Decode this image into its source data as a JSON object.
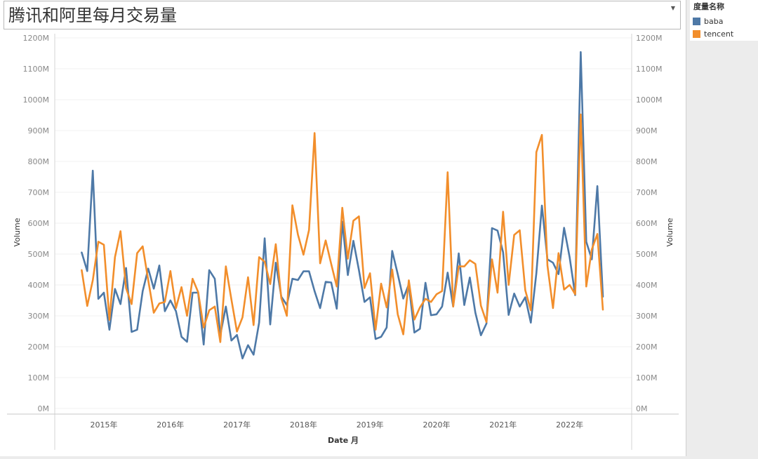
{
  "dashboard": {
    "title": "腾讯和阿里每月交易量",
    "dropdown_icon": "chevron-down-icon"
  },
  "legend": {
    "title": "度量名称",
    "items": [
      {
        "label": "baba",
        "color": "#4e79a7"
      },
      {
        "label": "tencent",
        "color": "#f28e2b"
      }
    ]
  },
  "chart_data": {
    "type": "line",
    "title": "",
    "xlabel": "Date 月",
    "ylabel": "Volume",
    "y2label": "Volume",
    "ylim": [
      0,
      1200
    ],
    "yticks": [
      0,
      100,
      200,
      300,
      400,
      500,
      600,
      700,
      800,
      900,
      1000,
      1100,
      1200
    ],
    "ytick_labels": [
      "0M",
      "100M",
      "200M",
      "300M",
      "400M",
      "500M",
      "600M",
      "700M",
      "800M",
      "900M",
      "1000M",
      "1100M",
      "1200M"
    ],
    "xtick_labels": [
      "2015年",
      "2016年",
      "2017年",
      "2018年",
      "2019年",
      "2020年",
      "2021年",
      "2022年"
    ],
    "x_range_months": [
      -1,
      96
    ],
    "grid": "horizontal",
    "series": [
      {
        "name": "baba",
        "color": "#4e79a7",
        "x_start": "2014-09",
        "values": [
          505,
          445,
          770,
          355,
          375,
          255,
          387,
          338,
          455,
          248,
          255,
          380,
          453,
          388,
          463,
          315,
          350,
          315,
          232,
          216,
          375,
          375,
          207,
          448,
          420,
          238,
          330,
          220,
          238,
          162,
          205,
          174,
          278,
          551,
          272,
          472,
          362,
          335,
          420,
          416,
          444,
          444,
          380,
          325,
          410,
          408,
          323,
          605,
          432,
          543,
          448,
          345,
          360,
          225,
          232,
          262,
          510,
          435,
          356,
          402,
          246,
          258,
          407,
          302,
          305,
          330,
          440,
          330,
          502,
          335,
          424,
          310,
          237,
          275,
          584,
          576,
          506,
          303,
          372,
          330,
          360,
          278,
          438,
          657,
          483,
          472,
          435,
          585,
          490,
          367,
          1154,
          540,
          483,
          720,
          362
        ]
      },
      {
        "name": "tencent",
        "color": "#f28e2b",
        "x_start": "2014-09",
        "values": [
          448,
          332,
          415,
          540,
          530,
          287,
          490,
          574,
          390,
          338,
          503,
          525,
          415,
          310,
          340,
          345,
          445,
          325,
          393,
          300,
          420,
          377,
          262,
          318,
          330,
          215,
          460,
          353,
          249,
          295,
          425,
          270,
          490,
          475,
          403,
          532,
          357,
          300,
          658,
          563,
          498,
          578,
          892,
          470,
          544,
          468,
          395,
          650,
          485,
          608,
          622,
          390,
          438,
          255,
          404,
          327,
          450,
          305,
          240,
          415,
          288,
          327,
          355,
          345,
          370,
          380,
          765,
          330,
          460,
          460,
          480,
          468,
          333,
          280,
          483,
          375,
          637,
          400,
          562,
          577,
          383,
          318,
          830,
          886,
          463,
          325,
          503,
          385,
          400,
          370,
          952,
          395,
          515,
          565,
          320
        ]
      }
    ]
  }
}
